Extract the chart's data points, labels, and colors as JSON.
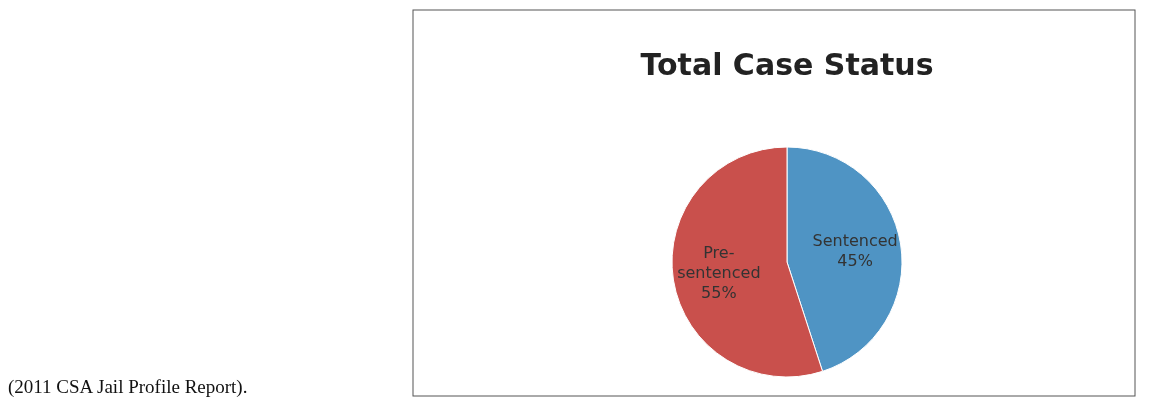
{
  "chart_data": {
    "type": "pie",
    "title": "Total Case Status",
    "categories": [
      "Sentenced",
      "Pre-sentenced"
    ],
    "values": [
      45,
      55
    ],
    "colors": [
      "#4f94c4",
      "#c9504c"
    ],
    "value_labels": [
      "45%",
      "55%"
    ],
    "annotations": [
      "(2011 CSA Jail Profile Report)."
    ]
  }
}
